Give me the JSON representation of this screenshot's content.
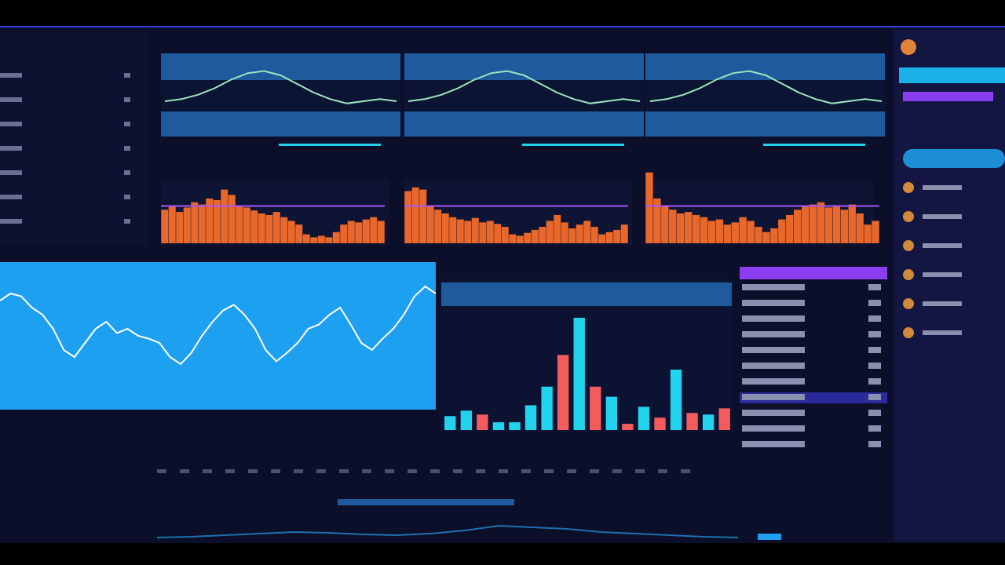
{
  "chart_data": [
    {
      "type": "bar",
      "values": [
        45,
        50,
        42,
        48,
        55,
        52,
        60,
        58,
        72,
        65,
        50,
        48,
        44,
        40,
        38,
        42,
        35,
        30,
        25,
        12,
        8,
        10,
        8,
        15,
        25,
        30,
        28,
        32,
        35,
        30
      ],
      "ylim": [
        0,
        100
      ],
      "reference_line": 50,
      "color": "#e8672a",
      "reference_color": "#a855f7"
    },
    {
      "type": "bar",
      "values": [
        70,
        75,
        72,
        50,
        45,
        40,
        35,
        32,
        30,
        34,
        28,
        30,
        26,
        22,
        12,
        10,
        14,
        18,
        22,
        30,
        38,
        28,
        20,
        25,
        30,
        22,
        12,
        15,
        18,
        25
      ],
      "ylim": [
        0,
        100
      ],
      "reference_line": 50,
      "color": "#e8672a",
      "reference_color": "#a855f7"
    },
    {
      "type": "bar",
      "values": [
        95,
        60,
        50,
        45,
        40,
        42,
        38,
        35,
        30,
        32,
        25,
        28,
        35,
        30,
        22,
        15,
        20,
        32,
        38,
        45,
        50,
        52,
        55,
        48,
        50,
        45,
        52,
        40,
        25,
        30
      ],
      "ylim": [
        0,
        100
      ],
      "reference_line": 50,
      "color": "#e8672a",
      "reference_color": "#a855f7"
    },
    {
      "type": "line",
      "values": [
        20,
        25,
        35,
        50,
        70,
        85,
        90,
        80,
        60,
        40,
        25,
        15,
        20,
        25,
        20
      ],
      "ylim": [
        0,
        100
      ],
      "color": "#9ee6c0"
    },
    {
      "type": "line",
      "values": [
        20,
        25,
        35,
        50,
        70,
        85,
        90,
        80,
        60,
        40,
        25,
        15,
        20,
        25,
        20
      ],
      "ylim": [
        0,
        100
      ],
      "color": "#9ee6c0"
    },
    {
      "type": "line",
      "values": [
        20,
        25,
        35,
        50,
        70,
        85,
        90,
        80,
        60,
        40,
        25,
        15,
        20,
        25,
        20
      ],
      "ylim": [
        0,
        100
      ],
      "color": "#9ee6c0"
    },
    {
      "type": "line",
      "values": [
        75,
        80,
        78,
        70,
        65,
        55,
        40,
        35,
        45,
        55,
        60,
        52,
        55,
        50,
        48,
        45,
        35,
        30,
        38,
        50,
        60,
        68,
        72,
        65,
        55,
        40,
        32,
        38,
        45,
        55,
        58,
        65,
        70,
        58,
        45,
        40,
        48,
        55,
        65,
        78,
        85,
        80
      ],
      "ylim": [
        0,
        100
      ],
      "color": "#ffffff",
      "background": "#1ea0f0"
    },
    {
      "type": "bar",
      "values": [
        18,
        25,
        20,
        10,
        10,
        32,
        56,
        97,
        145,
        56,
        43,
        8,
        30,
        16,
        78,
        22,
        20,
        28
      ],
      "colors": [
        "#22d3ee",
        "#22d3ee",
        "#f25c5c",
        "#22d3ee",
        "#22d3ee",
        "#22d3ee",
        "#22d3ee",
        "#f25c5c",
        "#22d3ee",
        "#f25c5c",
        "#22d3ee",
        "#f25c5c",
        "#22d3ee",
        "#f25c5c",
        "#22d3ee",
        "#f25c5c",
        "#22d3ee",
        "#f25c5c"
      ],
      "ylim": [
        0,
        150
      ]
    },
    {
      "type": "line",
      "values": [
        5,
        6,
        8,
        10,
        12,
        11,
        9,
        8,
        10,
        14,
        20,
        18,
        16,
        12,
        10,
        8,
        6,
        5
      ],
      "ylim": [
        0,
        30
      ],
      "color": "#1e6fb0"
    }
  ]
}
